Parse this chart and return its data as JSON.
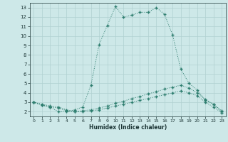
{
  "xlabel": "Humidex (Indice chaleur)",
  "background_color": "#cde8e8",
  "line_color": "#2d7d6e",
  "grid_color": "#b0d0d0",
  "xlim": [
    -0.5,
    23.5
  ],
  "ylim": [
    1.5,
    13.5
  ],
  "xticks": [
    0,
    1,
    2,
    3,
    4,
    5,
    6,
    7,
    8,
    9,
    10,
    11,
    12,
    13,
    14,
    15,
    16,
    17,
    18,
    19,
    20,
    21,
    22,
    23
  ],
  "yticks": [
    2,
    3,
    4,
    5,
    6,
    7,
    8,
    9,
    10,
    11,
    12,
    13
  ],
  "series1_x": [
    0,
    1,
    2,
    3,
    4,
    5,
    6,
    7,
    8,
    9,
    10,
    11,
    12,
    13,
    14,
    15,
    16,
    17,
    18,
    19,
    20,
    21,
    22,
    23
  ],
  "series1_y": [
    3.0,
    2.7,
    2.5,
    2.0,
    2.0,
    2.2,
    2.5,
    4.8,
    9.1,
    11.1,
    13.1,
    12.0,
    12.2,
    12.5,
    12.5,
    13.0,
    12.3,
    10.1,
    6.5,
    5.0,
    4.3,
    3.2,
    2.8,
    2.1
  ],
  "series2_x": [
    0,
    1,
    2,
    3,
    4,
    5,
    6,
    7,
    8,
    9,
    10,
    11,
    12,
    13,
    14,
    15,
    16,
    17,
    18,
    19,
    20,
    21,
    22,
    23
  ],
  "series2_y": [
    3.0,
    2.8,
    2.6,
    2.5,
    2.2,
    2.0,
    2.1,
    2.2,
    2.4,
    2.6,
    2.9,
    3.1,
    3.4,
    3.6,
    3.9,
    4.1,
    4.4,
    4.6,
    4.8,
    4.5,
    4.0,
    3.3,
    2.8,
    2.0
  ],
  "series3_x": [
    0,
    1,
    2,
    3,
    4,
    5,
    6,
    7,
    8,
    9,
    10,
    11,
    12,
    13,
    14,
    15,
    16,
    17,
    18,
    19,
    20,
    21,
    22,
    23
  ],
  "series3_y": [
    3.0,
    2.7,
    2.5,
    2.4,
    2.1,
    2.0,
    2.0,
    2.1,
    2.2,
    2.4,
    2.6,
    2.8,
    3.0,
    3.2,
    3.4,
    3.6,
    3.8,
    4.0,
    4.2,
    4.0,
    3.7,
    3.0,
    2.5,
    1.9
  ]
}
